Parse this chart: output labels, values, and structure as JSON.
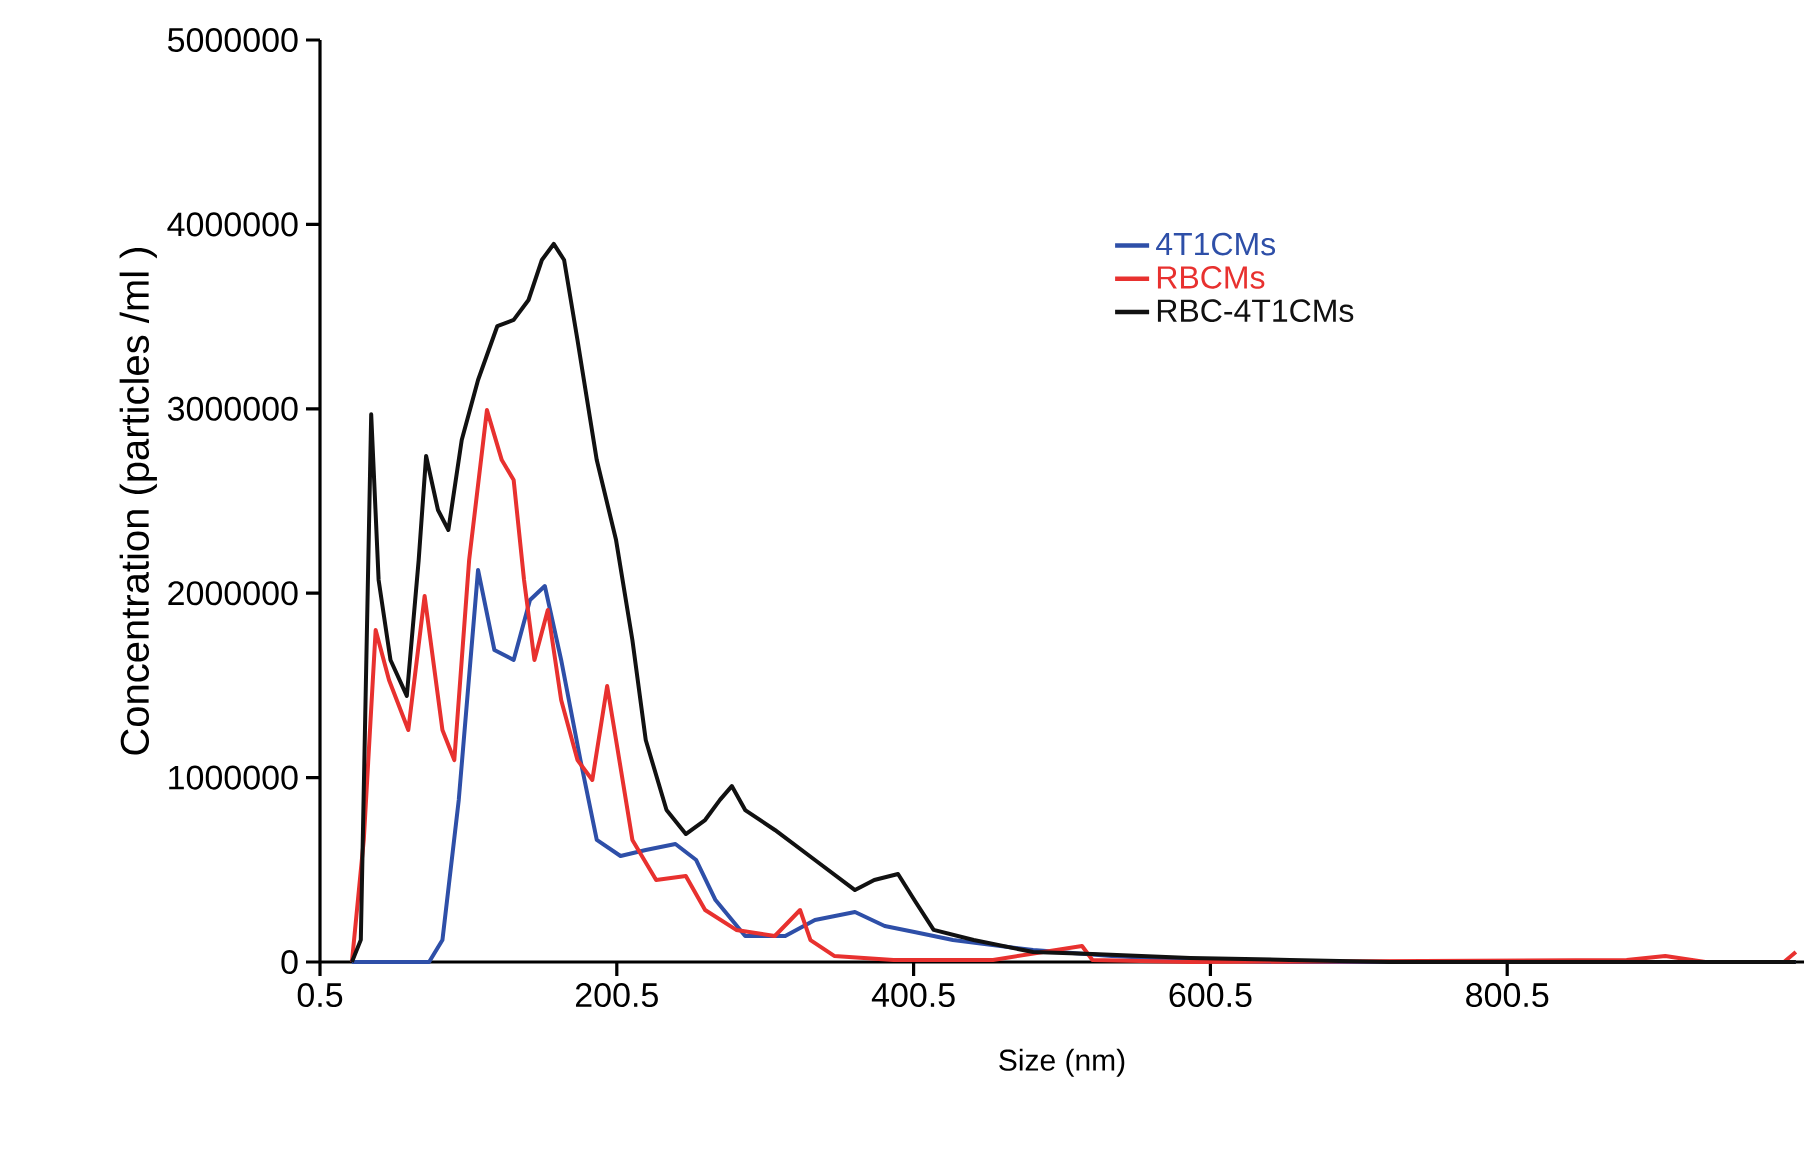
{
  "chart_data": {
    "type": "line",
    "xlabel": "Size (nm)",
    "ylabel": "Concentration (particles /ml )",
    "xlim": [
      0.5,
      1000.5
    ],
    "ylim": [
      0,
      5000000
    ],
    "xticks": [
      0.5,
      200.5,
      400.5,
      600.5,
      800.5
    ],
    "yticks": [
      0,
      1000000,
      2000000,
      3000000,
      4000000,
      5000000
    ],
    "legend": "top right",
    "grid": false,
    "marker": "none",
    "line_style": "solid",
    "series": [
      {
        "name": "4T1CMs",
        "color": "#2e4fa8",
        "x": [
          22,
          74,
          83,
          94,
          107,
          118,
          131,
          142,
          152,
          163,
          176,
          187,
          203,
          220,
          240,
          254,
          267,
          287,
          314,
          334,
          361,
          381,
          401,
          427,
          481,
          534,
          587,
          654,
          995
        ],
        "values": [
          0,
          0,
          119000,
          879000,
          2126000,
          1692000,
          1638000,
          1963000,
          2039000,
          1638000,
          1095000,
          662000,
          575000,
          607000,
          640000,
          553000,
          336000,
          141000,
          141000,
          228000,
          271000,
          195000,
          163000,
          119000,
          65000,
          33000,
          11000,
          0,
          0
        ]
      },
      {
        "name": "RBCMs",
        "color": "#e8312f",
        "x": [
          22,
          30,
          38,
          47,
          60,
          71,
          83,
          91,
          101,
          113,
          123,
          131,
          138,
          145,
          154,
          163,
          174,
          184,
          194,
          200,
          211,
          227,
          247,
          260,
          281,
          307,
          324,
          331,
          347,
          387,
          454,
          514,
          521,
          587,
          881,
          907,
          934,
          987,
          995
        ],
        "values": [
          0,
          662000,
          1800000,
          1529000,
          1258000,
          1985000,
          1258000,
          1095000,
          2180000,
          2993000,
          2722000,
          2614000,
          2072000,
          1638000,
          1909000,
          1421000,
          1095000,
          987000,
          1497000,
          1204000,
          662000,
          445000,
          466000,
          282000,
          174000,
          141000,
          282000,
          119000,
          33000,
          11000,
          11000,
          87000,
          11000,
          0,
          11000,
          33000,
          0,
          0,
          54000
        ]
      },
      {
        "name": "RBC-4T1CMs",
        "color": "#111111",
        "x": [
          22,
          28,
          35,
          40,
          48,
          59,
          67,
          72,
          80,
          87,
          96,
          107,
          120,
          131,
          141,
          150,
          158,
          165,
          174,
          187,
          200,
          211,
          220,
          234,
          247,
          260,
          270,
          278,
          287,
          307,
          334,
          361,
          374,
          390,
          401,
          414,
          441,
          481,
          521,
          587,
          654,
          721,
          995
        ],
        "values": [
          0,
          120000,
          2970000,
          2072000,
          1638000,
          1443000,
          2180000,
          2744000,
          2451000,
          2343000,
          2831000,
          3156000,
          3449000,
          3482000,
          3590000,
          3807000,
          3894000,
          3807000,
          3373000,
          2722000,
          2288000,
          1746000,
          1204000,
          824000,
          694000,
          770000,
          879000,
          954000,
          824000,
          716000,
          553000,
          390000,
          445000,
          477000,
          336000,
          174000,
          119000,
          54000,
          43000,
          22000,
          11000,
          0,
          0
        ]
      }
    ]
  }
}
